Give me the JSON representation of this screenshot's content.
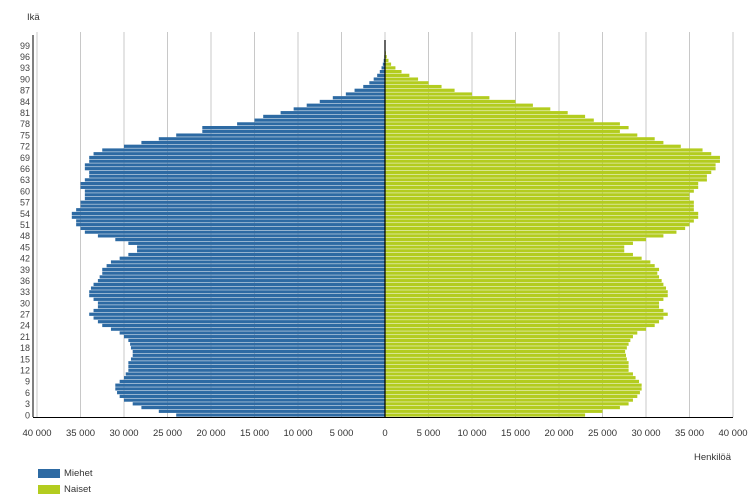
{
  "chart_data": {
    "type": "bar",
    "orientation": "horizontal-pyramid",
    "ylabel": "Ikä",
    "xlabel": "Henkilöä",
    "xlim": [
      -40000,
      40000
    ],
    "x_ticks": [
      -40000,
      -35000,
      -30000,
      -25000,
      -20000,
      -15000,
      -10000,
      -5000,
      0,
      5000,
      10000,
      15000,
      20000,
      25000,
      30000,
      35000,
      40000
    ],
    "x_tick_labels": [
      "40 000",
      "35 000",
      "30 000",
      "25 000",
      "20 000",
      "15 000",
      "10 000",
      "5 000",
      "0",
      "5 000",
      "10 000",
      "15 000",
      "20 000",
      "25 000",
      "30 000",
      "35 000",
      "40 000"
    ],
    "age_ticks": [
      0,
      3,
      6,
      9,
      12,
      15,
      18,
      21,
      24,
      27,
      30,
      33,
      36,
      39,
      42,
      45,
      48,
      51,
      54,
      57,
      60,
      63,
      66,
      69,
      72,
      75,
      78,
      81,
      84,
      87,
      90,
      93,
      96,
      99
    ],
    "grid": true,
    "legend_position": "bottom-left",
    "ages": [
      0,
      1,
      2,
      3,
      4,
      5,
      6,
      7,
      8,
      9,
      10,
      11,
      12,
      13,
      14,
      15,
      16,
      17,
      18,
      19,
      20,
      21,
      22,
      23,
      24,
      25,
      26,
      27,
      28,
      29,
      30,
      31,
      32,
      33,
      34,
      35,
      36,
      37,
      38,
      39,
      40,
      41,
      42,
      43,
      44,
      45,
      46,
      47,
      48,
      49,
      50,
      51,
      52,
      53,
      54,
      55,
      56,
      57,
      58,
      59,
      60,
      61,
      62,
      63,
      64,
      65,
      66,
      67,
      68,
      69,
      70,
      71,
      72,
      73,
      74,
      75,
      76,
      77,
      78,
      79,
      80,
      81,
      82,
      83,
      84,
      85,
      86,
      87,
      88,
      89,
      90,
      91,
      92,
      93,
      94,
      95,
      96,
      97,
      98,
      99,
      100
    ],
    "series": [
      {
        "name": "Miehet",
        "color": "#2d6aa3",
        "values": [
          24000,
          26000,
          28000,
          29000,
          30000,
          30500,
          30800,
          31000,
          31000,
          30500,
          30000,
          29800,
          29500,
          29500,
          29500,
          29200,
          29000,
          29000,
          29200,
          29300,
          29500,
          30000,
          30500,
          31500,
          32500,
          33000,
          33500,
          34000,
          33500,
          33000,
          33000,
          33500,
          34000,
          34000,
          33800,
          33500,
          33000,
          32800,
          32500,
          32500,
          32000,
          31500,
          30500,
          29500,
          28500,
          28500,
          29500,
          31000,
          33000,
          34500,
          35000,
          35500,
          35500,
          36000,
          36000,
          35500,
          35000,
          35000,
          34500,
          34500,
          34500,
          35000,
          35000,
          34500,
          34000,
          34000,
          34500,
          34500,
          34000,
          34000,
          33500,
          32500,
          30000,
          28000,
          26000,
          24000,
          21000,
          21000,
          17000,
          15000,
          14000,
          12000,
          10500,
          9000,
          7500,
          6000,
          4500,
          3500,
          2500,
          1800,
          1300,
          900,
          600,
          400,
          250,
          150,
          80,
          40,
          20,
          10,
          5
        ]
      },
      {
        "name": "Naiset",
        "color": "#b3cc1f",
        "values": [
          23000,
          25000,
          27000,
          28000,
          28500,
          29000,
          29300,
          29500,
          29500,
          29200,
          28800,
          28500,
          28000,
          28000,
          28000,
          27800,
          27700,
          27600,
          27800,
          28000,
          28200,
          28500,
          29000,
          30000,
          31000,
          31500,
          32000,
          32500,
          32000,
          31500,
          31500,
          32000,
          32500,
          32500,
          32300,
          32000,
          31800,
          31500,
          31300,
          31500,
          31000,
          30500,
          29500,
          28500,
          27500,
          27500,
          28500,
          30000,
          32000,
          33500,
          34500,
          35000,
          35500,
          36000,
          36000,
          35500,
          35500,
          35500,
          35000,
          35000,
          35500,
          36000,
          36000,
          37000,
          37000,
          37500,
          38000,
          38000,
          38500,
          38500,
          37500,
          36500,
          34000,
          32000,
          31000,
          29000,
          27000,
          28000,
          27000,
          24000,
          23000,
          21000,
          19000,
          17000,
          15000,
          12000,
          10000,
          8000,
          6500,
          5000,
          3800,
          2800,
          1900,
          1200,
          700,
          400,
          200,
          100,
          50,
          20,
          10
        ]
      }
    ]
  }
}
